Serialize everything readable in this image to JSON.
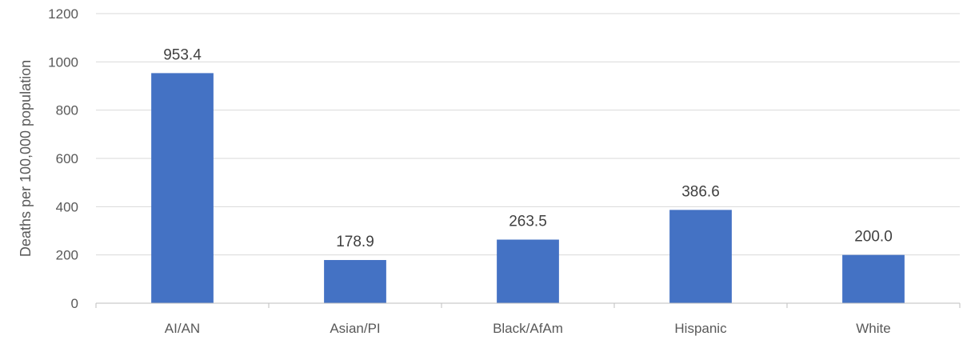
{
  "chart_data": {
    "type": "bar",
    "categories": [
      "AI/AN",
      "Asian/PI",
      "Black/AfAm",
      "Hispanic",
      "White"
    ],
    "values": [
      953.4,
      178.9,
      263.5,
      386.6,
      200.0
    ],
    "data_labels": [
      "953.4",
      "178.9",
      "263.5",
      "386.6",
      "200.0"
    ],
    "title": "",
    "xlabel": "",
    "ylabel": "Deaths per 100,000 population",
    "ylim": [
      0,
      1200
    ],
    "yticks": [
      0,
      200,
      400,
      600,
      800,
      1000,
      1200
    ],
    "grid": true,
    "legend": "none",
    "bar_color": "#4472c4"
  }
}
